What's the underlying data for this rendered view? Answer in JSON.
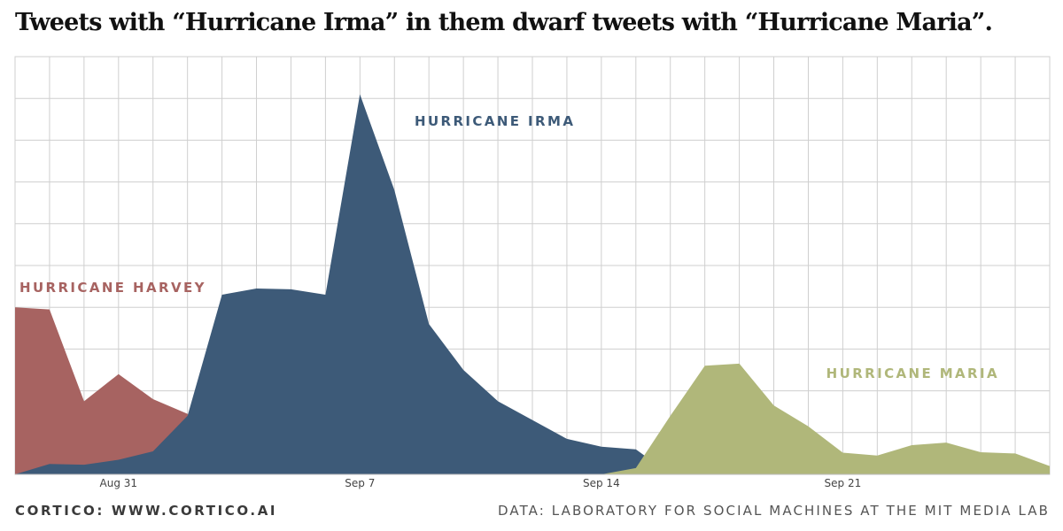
{
  "title": "Tweets with “Hurricane Irma” in them dwarf tweets with “Hurricane Maria”.",
  "footer": {
    "credit": "CORTICO: WWW.CORTICO.AI",
    "source": "DATA: LABORATORY FOR SOCIAL MACHINES AT THE MIT MEDIA LAB"
  },
  "chart_data": {
    "type": "area",
    "title": "Tweets with “Hurricane Irma” in them dwarf tweets with “Hurricane Maria”.",
    "xlabel": "",
    "ylabel": "",
    "x_tick_labels": [
      "Aug 31",
      "Sep 7",
      "Sep 14",
      "Sep 21"
    ],
    "x_tick_days": [
      2,
      9,
      16,
      23
    ],
    "x_range_days": [
      -1,
      29
    ],
    "ylim": [
      0,
      10
    ],
    "grid": true,
    "legend": "inline labels",
    "series": [
      {
        "name": "HURRICANE HARVEY",
        "color": "#a76361",
        "points": [
          [
            -1,
            4.0
          ],
          [
            0,
            3.95
          ],
          [
            1,
            1.75
          ],
          [
            2,
            2.4
          ],
          [
            3,
            1.8
          ],
          [
            4,
            1.45
          ],
          [
            5,
            0
          ]
        ]
      },
      {
        "name": "HURRICANE IRMA",
        "color": "#3d5a78",
        "points": [
          [
            -1,
            0
          ],
          [
            0,
            0.25
          ],
          [
            1,
            0.23
          ],
          [
            2,
            0.35
          ],
          [
            3,
            0.55
          ],
          [
            4,
            1.4
          ],
          [
            5,
            4.3
          ],
          [
            6,
            4.45
          ],
          [
            7,
            4.43
          ],
          [
            8,
            4.3
          ],
          [
            9,
            9.1
          ],
          [
            10,
            6.8
          ],
          [
            11,
            3.6
          ],
          [
            12,
            2.5
          ],
          [
            13,
            1.75
          ],
          [
            14,
            1.3
          ],
          [
            15,
            0.85
          ],
          [
            16,
            0.66
          ],
          [
            17,
            0.6
          ],
          [
            18,
            0
          ]
        ]
      },
      {
        "name": "HURRICANE MARIA",
        "color": "#b0b77a",
        "points": [
          [
            16,
            0
          ],
          [
            17,
            0.15
          ],
          [
            18,
            1.4
          ],
          [
            19,
            2.6
          ],
          [
            20,
            2.65
          ],
          [
            21,
            1.65
          ],
          [
            22,
            1.15
          ],
          [
            23,
            0.52
          ],
          [
            24,
            0.45
          ],
          [
            25,
            0.7
          ],
          [
            26,
            0.76
          ],
          [
            27,
            0.53
          ],
          [
            28,
            0.5
          ],
          [
            29,
            0.2
          ]
        ]
      }
    ]
  }
}
